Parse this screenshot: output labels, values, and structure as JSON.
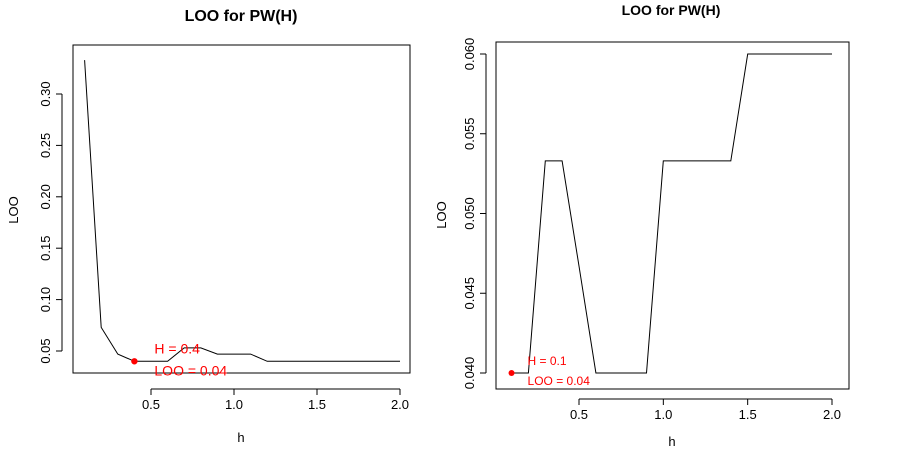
{
  "chart_data": [
    {
      "type": "line",
      "title": "LOO for PW(H)",
      "xlabel": "h",
      "ylabel": "LOO",
      "xlim": [
        0.1,
        2.0
      ],
      "ylim": [
        0.04,
        0.333
      ],
      "xticks": [
        0.5,
        1.0,
        1.5,
        2.0
      ],
      "xtick_labels": [
        "0.5",
        "1.0",
        "1.5",
        "2.0"
      ],
      "yticks": [
        0.05,
        0.1,
        0.15,
        0.2,
        0.25,
        0.3
      ],
      "ytick_labels": [
        "0.05",
        "0.10",
        "0.15",
        "0.20",
        "0.25",
        "0.30"
      ],
      "grid": false,
      "series": [
        {
          "color": "#000000",
          "x": [
            0.1,
            0.2,
            0.3,
            0.4,
            0.5,
            0.6,
            0.7,
            0.8,
            0.9,
            1.0,
            1.1,
            1.2,
            1.3,
            1.4,
            1.5,
            1.6,
            1.7,
            1.8,
            1.9,
            2.0
          ],
          "y": [
            0.333,
            0.073,
            0.047,
            0.04,
            0.04,
            0.04,
            0.053,
            0.053,
            0.047,
            0.047,
            0.047,
            0.04,
            0.04,
            0.04,
            0.04,
            0.04,
            0.04,
            0.04,
            0.04,
            0.04
          ]
        }
      ],
      "highlight": {
        "x": 0.4,
        "y": 0.04,
        "color": "#ff0000",
        "label_line1": "H = 0.4",
        "label_line2": "LOO = 0.04"
      }
    },
    {
      "type": "line",
      "title": "LOO for PW(H)",
      "xlabel": "h",
      "ylabel": "LOO",
      "xlim": [
        0.1,
        2.0
      ],
      "ylim": [
        0.04,
        0.06
      ],
      "xticks": [
        0.5,
        1.0,
        1.5,
        2.0
      ],
      "xtick_labels": [
        "0.5",
        "1.0",
        "1.5",
        "2.0"
      ],
      "yticks": [
        0.04,
        0.045,
        0.05,
        0.055,
        0.06
      ],
      "ytick_labels": [
        "0.040",
        "0.045",
        "0.050",
        "0.055",
        "0.060"
      ],
      "grid": false,
      "series": [
        {
          "color": "#000000",
          "x": [
            0.1,
            0.2,
            0.3,
            0.4,
            0.5,
            0.6,
            0.7,
            0.8,
            0.9,
            1.0,
            1.1,
            1.2,
            1.3,
            1.4,
            1.5,
            1.6,
            1.7,
            1.8,
            1.9,
            2.0
          ],
          "y": [
            0.04,
            0.04,
            0.0533,
            0.0533,
            0.0467,
            0.04,
            0.04,
            0.04,
            0.04,
            0.0533,
            0.0533,
            0.0533,
            0.0533,
            0.0533,
            0.06,
            0.06,
            0.06,
            0.06,
            0.06,
            0.06
          ]
        }
      ],
      "highlight": {
        "x": 0.1,
        "y": 0.04,
        "color": "#ff0000",
        "label_line1": "H = 0.1",
        "label_line2": "LOO = 0.04"
      }
    }
  ]
}
